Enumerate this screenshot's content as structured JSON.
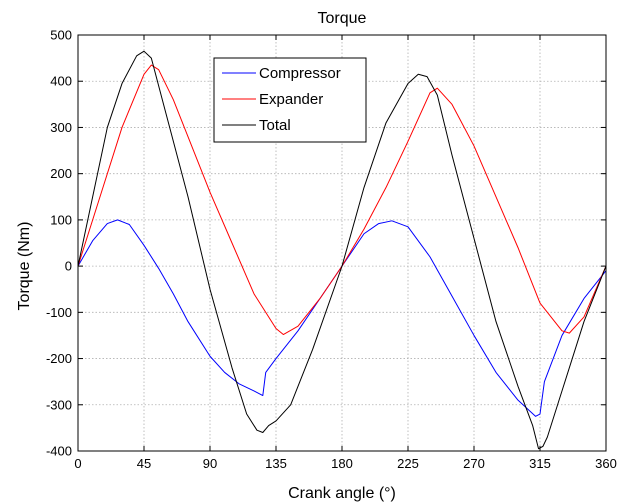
{
  "chart_data": {
    "type": "line",
    "title": "Torque",
    "xlabel": "Crank angle (°)",
    "ylabel": "Torque (Nm)",
    "xlim": [
      0,
      360
    ],
    "ylim": [
      -400,
      500
    ],
    "xticks": [
      0,
      45,
      90,
      135,
      180,
      225,
      270,
      315,
      360
    ],
    "yticks": [
      -400,
      -300,
      -200,
      -100,
      0,
      100,
      200,
      300,
      400,
      500
    ],
    "grid": true,
    "legend_position": "top-center",
    "series": [
      {
        "name": "Compressor",
        "color": "#0000ff",
        "x": [
          0,
          10,
          20,
          27,
          35,
          45,
          55,
          65,
          75,
          90,
          100,
          110,
          120,
          126,
          128,
          135,
          150,
          165,
          180,
          195,
          205,
          214,
          225,
          240,
          255,
          270,
          285,
          300,
          312,
          315,
          318,
          330,
          345,
          360
        ],
        "y": [
          0,
          55,
          92,
          100,
          90,
          45,
          -5,
          -60,
          -120,
          -195,
          -230,
          -255,
          -270,
          -280,
          -230,
          -200,
          -140,
          -70,
          0,
          70,
          92,
          98,
          85,
          20,
          -65,
          -150,
          -230,
          -290,
          -325,
          -320,
          -250,
          -150,
          -70,
          -10
        ]
      },
      {
        "name": "Expander",
        "color": "#ff0000",
        "x": [
          0,
          15,
          30,
          45,
          50,
          55,
          65,
          75,
          90,
          105,
          120,
          135,
          140,
          150,
          165,
          180,
          195,
          210,
          225,
          240,
          245,
          255,
          270,
          285,
          300,
          315,
          330,
          335,
          345,
          360
        ],
        "y": [
          0,
          150,
          300,
          415,
          435,
          425,
          360,
          280,
          160,
          50,
          -60,
          -135,
          -148,
          -130,
          -70,
          0,
          80,
          170,
          270,
          375,
          385,
          350,
          260,
          150,
          40,
          -80,
          -140,
          -145,
          -110,
          0
        ]
      },
      {
        "name": "Total",
        "color": "#000000",
        "x": [
          0,
          10,
          20,
          30,
          40,
          45,
          50,
          60,
          75,
          90,
          105,
          115,
          122,
          126,
          130,
          135,
          145,
          160,
          180,
          195,
          210,
          225,
          232,
          238,
          245,
          255,
          270,
          285,
          300,
          310,
          314,
          317,
          320,
          330,
          345,
          360
        ],
        "y": [
          0,
          150,
          300,
          395,
          455,
          465,
          450,
          330,
          150,
          -50,
          -220,
          -320,
          -355,
          -360,
          -345,
          -335,
          -300,
          -180,
          0,
          170,
          310,
          395,
          415,
          410,
          370,
          240,
          60,
          -120,
          -260,
          -345,
          -395,
          -390,
          -370,
          -270,
          -120,
          0
        ]
      }
    ]
  }
}
